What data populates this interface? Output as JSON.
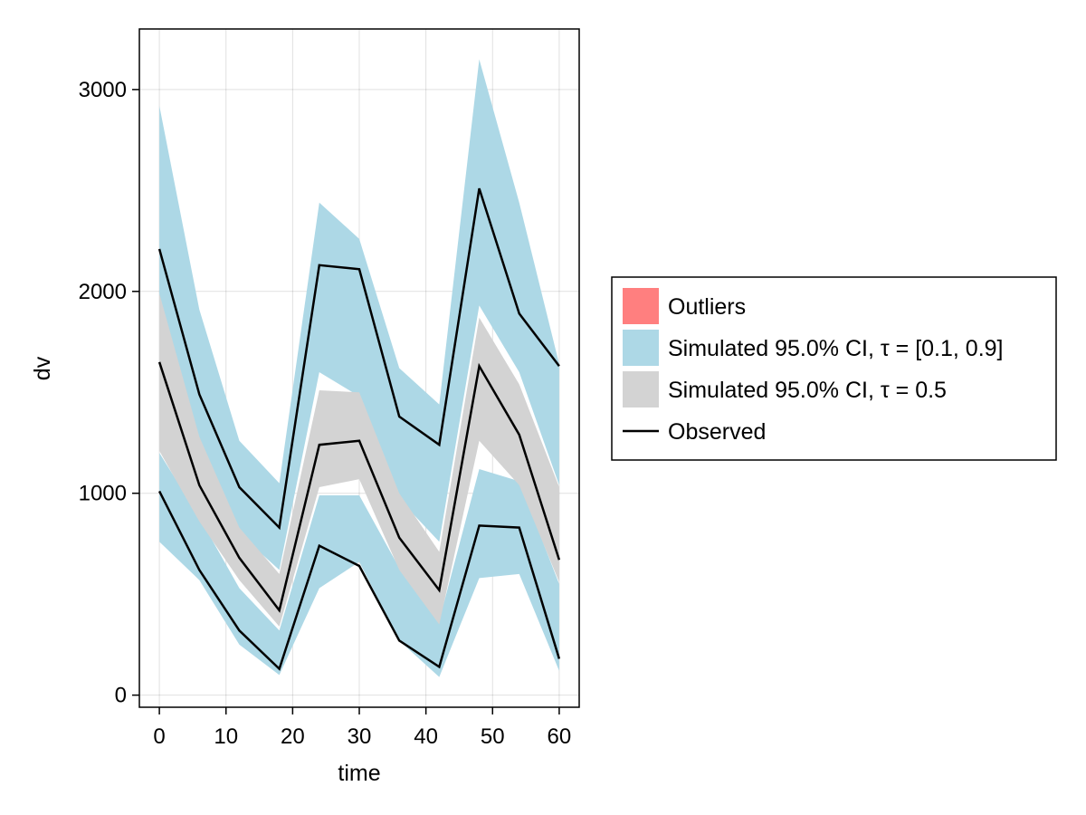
{
  "chart_data": {
    "type": "area",
    "title": "",
    "xlabel": "time",
    "ylabel": "dv",
    "xlim": [
      -3,
      63
    ],
    "ylim": [
      -60,
      3300
    ],
    "xticks": [
      0,
      10,
      20,
      30,
      40,
      50,
      60
    ],
    "yticks": [
      0,
      1000,
      2000,
      3000
    ],
    "grid": true,
    "x": [
      0,
      6,
      12,
      18,
      24,
      30,
      36,
      42,
      48,
      54,
      60
    ],
    "bands": [
      {
        "name": "Simulated 95.0% CI, τ = [0.1, 0.9]",
        "color": "#add8e6",
        "upper": {
          "high": [
            2920,
            1910,
            1260,
            1050,
            2440,
            2260,
            1620,
            1440,
            3150,
            2440,
            1640
          ],
          "low": [
            1980,
            1220,
            800,
            620,
            1600,
            1480,
            970,
            760,
            1930,
            1600,
            1040
          ]
        },
        "lower": {
          "high": [
            1200,
            880,
            530,
            320,
            990,
            990,
            630,
            370,
            1120,
            1060,
            550
          ],
          "low": [
            760,
            570,
            250,
            100,
            530,
            660,
            270,
            90,
            580,
            600,
            120
          ]
        }
      },
      {
        "name": "Simulated 95.0% CI, τ = 0.5",
        "color": "#d3d3d3",
        "high": [
          1990,
          1280,
          830,
          600,
          1510,
          1500,
          1000,
          710,
          1870,
          1540,
          1030
        ],
        "low": [
          1210,
          860,
          570,
          340,
          1030,
          1070,
          620,
          350,
          1260,
          1040,
          560
        ]
      }
    ],
    "observed": {
      "name": "Observed",
      "color": "#000000",
      "upper": [
        2210,
        1490,
        1030,
        830,
        2130,
        2110,
        1380,
        1240,
        2510,
        1890,
        1630
      ],
      "median": [
        1650,
        1040,
        680,
        420,
        1240,
        1260,
        780,
        520,
        1630,
        1290,
        670
      ],
      "lower": [
        1010,
        620,
        320,
        130,
        740,
        640,
        270,
        140,
        840,
        830,
        180
      ]
    },
    "legend": {
      "placement": "right",
      "entries": [
        {
          "label": "Outliers",
          "kind": "patch",
          "color": "#ff7f7f"
        },
        {
          "label": "Simulated 95.0% CI, τ = [0.1, 0.9]",
          "kind": "patch",
          "color": "#add8e6"
        },
        {
          "label": "Simulated 95.0% CI, τ = 0.5",
          "kind": "patch",
          "color": "#d3d3d3"
        },
        {
          "label": "Observed",
          "kind": "line",
          "color": "#000000"
        }
      ]
    }
  }
}
